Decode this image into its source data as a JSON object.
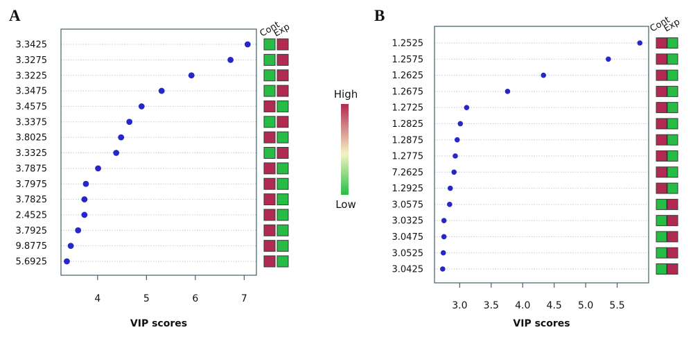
{
  "colors": {
    "high": "#b12a52",
    "mid": "#f4f3c6",
    "low": "#27bd45",
    "dot": "#2727c9"
  },
  "legend": {
    "position": "center",
    "high_label": "High",
    "low_label": "Low"
  },
  "chart_data": [
    {
      "type": "scatter",
      "panel_label": "A",
      "categories": [
        "3.3425",
        "3.3275",
        "3.3225",
        "3.3475",
        "3.4575",
        "3.3375",
        "3.8025",
        "3.3325",
        "3.7875",
        "3.7975",
        "3.7825",
        "2.4525",
        "3.7925",
        "9.8775",
        "5.6925"
      ],
      "values": [
        7.07,
        6.72,
        5.92,
        5.31,
        4.9,
        4.65,
        4.48,
        4.38,
        4.01,
        3.76,
        3.73,
        3.73,
        3.6,
        3.45,
        3.37
      ],
      "xlabel": "VIP scores",
      "xlim": [
        3.25,
        7.25
      ],
      "xticks": [
        "4",
        "5",
        "6",
        "7"
      ],
      "grid": true,
      "heatmap": {
        "columns": [
          "Cont",
          "Exp"
        ],
        "levels": [
          [
            0,
            1
          ],
          [
            0,
            1
          ],
          [
            0,
            1
          ],
          [
            0,
            1
          ],
          [
            1,
            0
          ],
          [
            0,
            1
          ],
          [
            1,
            0
          ],
          [
            0,
            1
          ],
          [
            1,
            0
          ],
          [
            1,
            0
          ],
          [
            1,
            0
          ],
          [
            1,
            0
          ],
          [
            1,
            0
          ],
          [
            1,
            0
          ],
          [
            1,
            0
          ]
        ]
      }
    },
    {
      "type": "scatter",
      "panel_label": "B",
      "categories": [
        "1.2525",
        "1.2575",
        "1.2625",
        "1.2675",
        "1.2725",
        "1.2825",
        "1.2875",
        "1.2775",
        "7.2625",
        "1.2925",
        "3.0575",
        "3.0325",
        "3.0475",
        "3.0525",
        "3.0425"
      ],
      "values": [
        5.86,
        5.36,
        4.33,
        3.76,
        3.11,
        3.01,
        2.96,
        2.93,
        2.91,
        2.85,
        2.84,
        2.75,
        2.75,
        2.74,
        2.73
      ],
      "xlabel": "VIP scores",
      "xlim": [
        2.6,
        6.0
      ],
      "xticks": [
        "3.0",
        "3.5",
        "4.0",
        "4.5",
        "5.0",
        "5.5"
      ],
      "grid": true,
      "heatmap": {
        "columns": [
          "Cont",
          "Exp"
        ],
        "levels": [
          [
            1,
            0
          ],
          [
            1,
            0
          ],
          [
            1,
            0
          ],
          [
            1,
            0
          ],
          [
            1,
            0
          ],
          [
            1,
            0
          ],
          [
            1,
            0
          ],
          [
            1,
            0
          ],
          [
            1,
            0
          ],
          [
            1,
            0
          ],
          [
            0,
            1
          ],
          [
            0,
            1
          ],
          [
            0,
            1
          ],
          [
            0,
            1
          ],
          [
            0,
            1
          ]
        ]
      }
    }
  ]
}
